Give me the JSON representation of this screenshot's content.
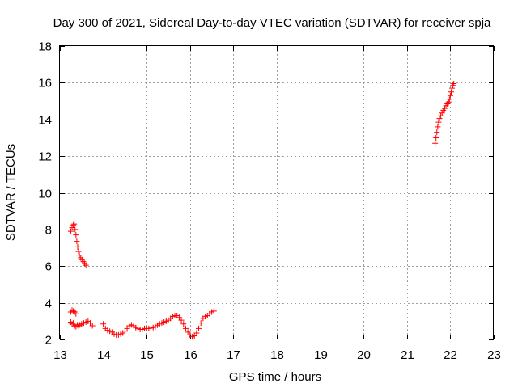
{
  "chart_data": {
    "type": "scatter",
    "title": "Day 300 of 2021, Sidereal Day-to-day VTEC variation (SDTVAR) for receiver spja",
    "xlabel": "GPS time / hours",
    "ylabel": "SDTVAR / TECUs",
    "xlim": [
      13,
      23
    ],
    "ylim": [
      2,
      18
    ],
    "xticks": [
      "13",
      "14",
      "15",
      "16",
      "17",
      "18",
      "19",
      "20",
      "21",
      "22",
      "23"
    ],
    "yticks": [
      "2",
      "4",
      "6",
      "8",
      "10",
      "12",
      "14",
      "16",
      "18"
    ],
    "grid": true,
    "marker": "plus",
    "color": "#ff0000",
    "segments": [
      {
        "name": "upper-early",
        "points": [
          [
            13.25,
            7.9
          ],
          [
            13.28,
            8.1
          ],
          [
            13.31,
            8.25
          ],
          [
            13.33,
            8.3
          ],
          [
            13.35,
            8.0
          ],
          [
            13.37,
            7.7
          ],
          [
            13.39,
            7.35
          ],
          [
            13.41,
            7.05
          ],
          [
            13.43,
            6.8
          ],
          [
            13.45,
            6.6
          ],
          [
            13.48,
            6.45
          ],
          [
            13.51,
            6.35
          ],
          [
            13.54,
            6.25
          ],
          [
            13.57,
            6.15
          ],
          [
            13.6,
            6.05
          ]
        ]
      },
      {
        "name": "lower-early",
        "points": [
          [
            13.25,
            3.5
          ],
          [
            13.28,
            3.6
          ],
          [
            13.31,
            3.55
          ],
          [
            13.34,
            3.5
          ],
          [
            13.37,
            3.4
          ],
          [
            13.25,
            2.95
          ],
          [
            13.28,
            2.85
          ],
          [
            13.31,
            2.9
          ],
          [
            13.34,
            2.75
          ],
          [
            13.37,
            2.7
          ],
          [
            13.4,
            2.8
          ],
          [
            13.43,
            2.75
          ],
          [
            13.46,
            2.8
          ],
          [
            13.5,
            2.85
          ],
          [
            13.55,
            2.9
          ],
          [
            13.6,
            2.95
          ],
          [
            13.65,
            3.0
          ],
          [
            13.7,
            2.9
          ],
          [
            13.75,
            2.75
          ]
        ]
      },
      {
        "name": "main",
        "points": [
          [
            14.0,
            2.85
          ],
          [
            14.05,
            2.6
          ],
          [
            14.1,
            2.5
          ],
          [
            14.15,
            2.45
          ],
          [
            14.2,
            2.4
          ],
          [
            14.25,
            2.3
          ],
          [
            14.3,
            2.25
          ],
          [
            14.35,
            2.25
          ],
          [
            14.4,
            2.3
          ],
          [
            14.45,
            2.35
          ],
          [
            14.5,
            2.45
          ],
          [
            14.55,
            2.6
          ],
          [
            14.6,
            2.75
          ],
          [
            14.65,
            2.8
          ],
          [
            14.7,
            2.75
          ],
          [
            14.75,
            2.65
          ],
          [
            14.8,
            2.6
          ],
          [
            14.85,
            2.55
          ],
          [
            14.9,
            2.55
          ],
          [
            14.95,
            2.6
          ],
          [
            15.0,
            2.6
          ],
          [
            15.05,
            2.6
          ],
          [
            15.1,
            2.62
          ],
          [
            15.15,
            2.65
          ],
          [
            15.2,
            2.7
          ],
          [
            15.25,
            2.78
          ],
          [
            15.3,
            2.85
          ],
          [
            15.35,
            2.9
          ],
          [
            15.4,
            2.95
          ],
          [
            15.45,
            3.0
          ],
          [
            15.5,
            3.05
          ],
          [
            15.55,
            3.15
          ],
          [
            15.6,
            3.25
          ],
          [
            15.65,
            3.3
          ],
          [
            15.7,
            3.3
          ],
          [
            15.75,
            3.2
          ],
          [
            15.8,
            3.05
          ],
          [
            15.85,
            2.85
          ],
          [
            15.9,
            2.6
          ],
          [
            15.95,
            2.4
          ],
          [
            16.0,
            2.25
          ],
          [
            16.05,
            2.15
          ],
          [
            16.1,
            2.2
          ],
          [
            16.15,
            2.35
          ],
          [
            16.2,
            2.6
          ],
          [
            16.25,
            2.9
          ],
          [
            16.3,
            3.15
          ],
          [
            16.35,
            3.25
          ],
          [
            16.4,
            3.3
          ],
          [
            16.45,
            3.4
          ],
          [
            16.5,
            3.5
          ],
          [
            16.55,
            3.55
          ]
        ]
      },
      {
        "name": "late",
        "points": [
          [
            21.65,
            12.7
          ],
          [
            21.67,
            13.0
          ],
          [
            21.69,
            13.3
          ],
          [
            21.71,
            13.6
          ],
          [
            21.73,
            13.85
          ],
          [
            21.75,
            14.05
          ],
          [
            21.78,
            14.2
          ],
          [
            21.81,
            14.35
          ],
          [
            21.84,
            14.5
          ],
          [
            21.87,
            14.6
          ],
          [
            21.9,
            14.75
          ],
          [
            21.93,
            14.85
          ],
          [
            21.96,
            14.95
          ],
          [
            21.98,
            15.1
          ],
          [
            22.0,
            15.3
          ],
          [
            22.02,
            15.5
          ],
          [
            22.04,
            15.7
          ],
          [
            22.06,
            15.85
          ],
          [
            22.08,
            15.95
          ]
        ]
      }
    ]
  }
}
